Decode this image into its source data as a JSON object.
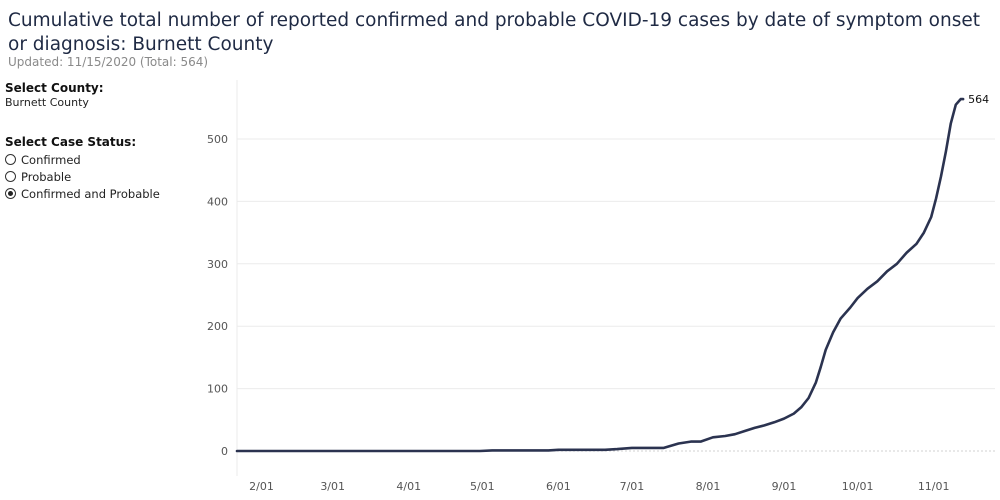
{
  "header": {
    "title": "Cumulative total number of reported confirmed and probable COVID-19 cases by date of symptom onset or diagnosis: Burnett County",
    "subtitle": "Updated: 11/15/2020 (Total: 564)"
  },
  "filters": {
    "county_label": "Select County:",
    "county_value": "Burnett County",
    "status_label": "Select Case Status:",
    "status_options": [
      {
        "label": "Confirmed",
        "checked": false
      },
      {
        "label": "Probable",
        "checked": false
      },
      {
        "label": "Confirmed and Probable",
        "checked": true
      }
    ]
  },
  "colors": {
    "line": "#2b3350",
    "grid": "#ebebeb",
    "axis": "#c8c8c8"
  },
  "chart_data": {
    "type": "line",
    "xlabel": "",
    "ylabel": "",
    "ylim": [
      0,
      580
    ],
    "xlim": [
      "2020-01-22",
      "2020-11-26"
    ],
    "yticks": [
      0,
      100,
      200,
      300,
      400,
      500
    ],
    "xticks": [
      {
        "date": "2020-02-01",
        "label": "2/01"
      },
      {
        "date": "2020-03-01",
        "label": "3/01"
      },
      {
        "date": "2020-04-01",
        "label": "4/01"
      },
      {
        "date": "2020-05-01",
        "label": "5/01"
      },
      {
        "date": "2020-06-01",
        "label": "6/01"
      },
      {
        "date": "2020-07-01",
        "label": "7/01"
      },
      {
        "date": "2020-08-01",
        "label": "8/01"
      },
      {
        "date": "2020-09-01",
        "label": "9/01"
      },
      {
        "date": "2020-10-01",
        "label": "10/01"
      },
      {
        "date": "2020-11-01",
        "label": "11/01"
      }
    ],
    "grid": true,
    "end_label": "564",
    "series": [
      {
        "points": [
          [
            "2020-01-22",
            0
          ],
          [
            "2020-04-30",
            0
          ],
          [
            "2020-05-05",
            1
          ],
          [
            "2020-05-28",
            1
          ],
          [
            "2020-06-01",
            2
          ],
          [
            "2020-06-20",
            2
          ],
          [
            "2020-06-25",
            3
          ],
          [
            "2020-07-01",
            5
          ],
          [
            "2020-07-14",
            5
          ],
          [
            "2020-07-20",
            12
          ],
          [
            "2020-07-25",
            15
          ],
          [
            "2020-07-29",
            15
          ],
          [
            "2020-08-03",
            22
          ],
          [
            "2020-08-08",
            24
          ],
          [
            "2020-08-12",
            27
          ],
          [
            "2020-08-16",
            32
          ],
          [
            "2020-08-20",
            37
          ],
          [
            "2020-08-24",
            41
          ],
          [
            "2020-08-28",
            46
          ],
          [
            "2020-09-01",
            52
          ],
          [
            "2020-09-05",
            60
          ],
          [
            "2020-09-08",
            70
          ],
          [
            "2020-09-11",
            85
          ],
          [
            "2020-09-14",
            110
          ],
          [
            "2020-09-16",
            135
          ],
          [
            "2020-09-18",
            162
          ],
          [
            "2020-09-21",
            190
          ],
          [
            "2020-09-24",
            212
          ],
          [
            "2020-09-28",
            230
          ],
          [
            "2020-10-01",
            245
          ],
          [
            "2020-10-05",
            260
          ],
          [
            "2020-10-09",
            272
          ],
          [
            "2020-10-13",
            288
          ],
          [
            "2020-10-17",
            300
          ],
          [
            "2020-10-21",
            318
          ],
          [
            "2020-10-25",
            332
          ],
          [
            "2020-10-28",
            350
          ],
          [
            "2020-10-31",
            375
          ],
          [
            "2020-11-02",
            405
          ],
          [
            "2020-11-04",
            440
          ],
          [
            "2020-11-06",
            480
          ],
          [
            "2020-11-08",
            525
          ],
          [
            "2020-11-10",
            555
          ],
          [
            "2020-11-12",
            564
          ],
          [
            "2020-11-13",
            564
          ]
        ]
      }
    ]
  }
}
